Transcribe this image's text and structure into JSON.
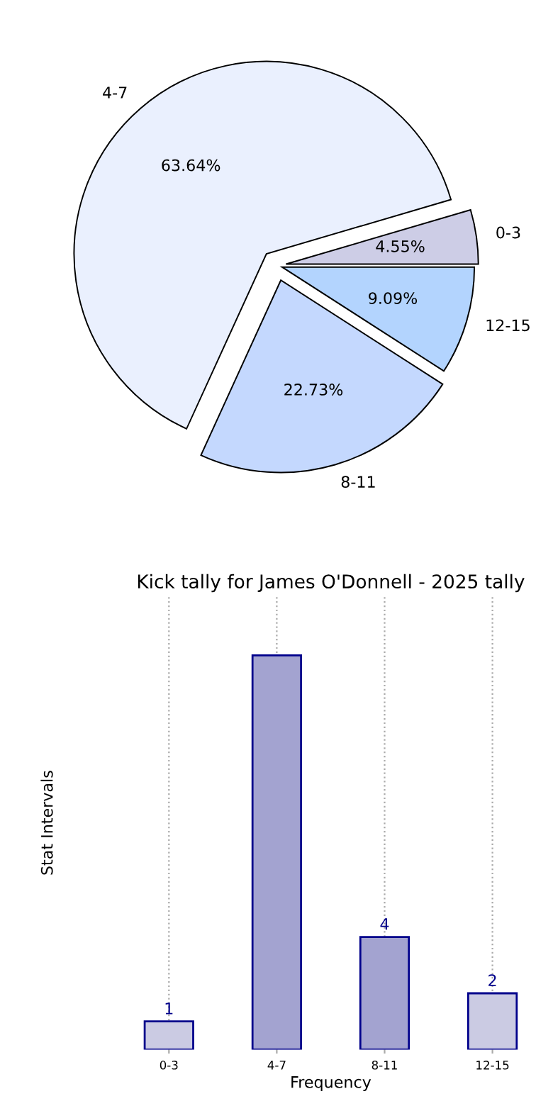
{
  "chart_data": [
    {
      "type": "bar",
      "title": "Kick tally for James O'Donnell - 2025 tally",
      "xlabel": "Frequency",
      "ylabel": "Stat Intervals",
      "categories": [
        "0-3",
        "4-7",
        "8-11",
        "12-15"
      ],
      "values": [
        1,
        14,
        4,
        2
      ],
      "colors": [
        "#cbcbe3",
        "#a3a3d0",
        "#a3a3d0",
        "#cbcbe3"
      ],
      "value_labels": [
        "1",
        null,
        "4",
        "2"
      ],
      "grid": "x",
      "tick_labels": "x"
    },
    {
      "type": "pie",
      "categories": [
        "0-3",
        "4-7",
        "8-11",
        "12-15"
      ],
      "values": [
        4.55,
        63.64,
        22.73,
        9.09
      ],
      "colors": [
        "#cdcde6",
        "#eaf0fe",
        "#c4d8fe",
        "#b3d4fe"
      ],
      "value_labels": [
        "4.55%",
        "63.64%",
        "22.73%",
        "9.09%"
      ]
    }
  ]
}
